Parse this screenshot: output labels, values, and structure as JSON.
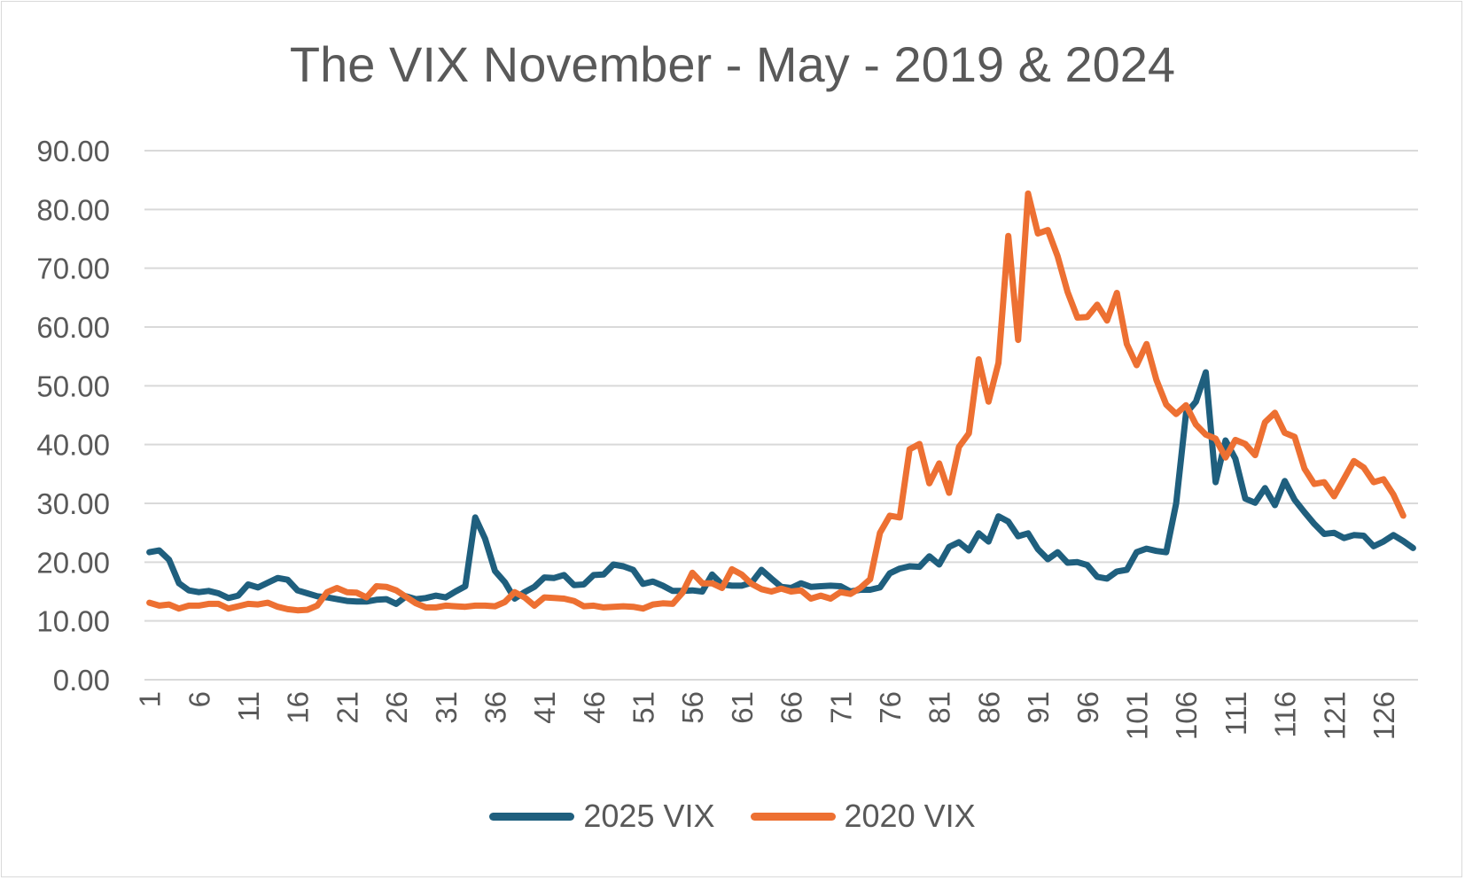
{
  "chart_data": {
    "type": "line",
    "title": "The VIX November - May - 2019 & 2024",
    "xlabel": "",
    "ylabel": "",
    "ylim": [
      0,
      90
    ],
    "y_ticks": [
      "0.00",
      "10.00",
      "20.00",
      "30.00",
      "40.00",
      "50.00",
      "60.00",
      "70.00",
      "80.00",
      "90.00"
    ],
    "x_ticks": [
      "1",
      "6",
      "11",
      "16",
      "21",
      "26",
      "31",
      "36",
      "41",
      "46",
      "51",
      "56",
      "61",
      "66",
      "71",
      "76",
      "81",
      "86",
      "91",
      "96",
      "101",
      "106",
      "111",
      "116",
      "121",
      "126"
    ],
    "grid": true,
    "legend_position": "bottom",
    "series": [
      {
        "name": "2025 VIX",
        "color": "#1f5f7e",
        "values": [
          21.7,
          22.0,
          20.4,
          16.4,
          15.2,
          14.9,
          15.1,
          14.7,
          13.9,
          14.3,
          16.2,
          15.7,
          16.5,
          17.3,
          17.0,
          15.2,
          14.7,
          14.2,
          14.0,
          13.7,
          13.4,
          13.3,
          13.3,
          13.6,
          13.7,
          12.9,
          14.2,
          13.7,
          13.9,
          14.3,
          14.0,
          15.0,
          15.9,
          27.6,
          24.0,
          18.5,
          16.6,
          13.8,
          14.9,
          15.8,
          17.4,
          17.3,
          17.8,
          16.1,
          16.2,
          17.8,
          17.9,
          19.6,
          19.3,
          18.7,
          16.3,
          16.7,
          16.0,
          15.1,
          15.1,
          15.2,
          15.0,
          17.9,
          16.2,
          16.0,
          16.0,
          16.5,
          18.7,
          17.2,
          15.8,
          15.6,
          16.4,
          15.8,
          15.9,
          16.0,
          15.9,
          15.0,
          15.3,
          15.3,
          15.7,
          18.1,
          18.9,
          19.3,
          19.2,
          21.0,
          19.6,
          22.6,
          23.4,
          22.0,
          24.9,
          23.5,
          27.8,
          26.9,
          24.4,
          24.9,
          22.2,
          20.5,
          21.7,
          19.9,
          20.0,
          19.5,
          17.5,
          17.2,
          18.4,
          18.7,
          21.7,
          22.3,
          21.9,
          21.7,
          30.0,
          45.3,
          47.3,
          52.3,
          33.6,
          40.7,
          37.6,
          30.8,
          30.1,
          32.6,
          29.7,
          33.8,
          30.6,
          28.5,
          26.5,
          24.8,
          25.0,
          24.1,
          24.6,
          24.5,
          22.7,
          23.5,
          24.6,
          23.6,
          22.4
        ]
      },
      {
        "name": "2020 VIX",
        "color": "#ed7032",
        "values": [
          13.1,
          12.6,
          12.8,
          12.1,
          12.6,
          12.6,
          12.9,
          12.9,
          12.1,
          12.5,
          12.9,
          12.8,
          13.1,
          12.4,
          12.0,
          11.8,
          11.9,
          12.6,
          14.9,
          15.6,
          14.9,
          14.8,
          14.0,
          15.9,
          15.8,
          15.2,
          14.1,
          13.0,
          12.3,
          12.3,
          12.6,
          12.5,
          12.4,
          12.6,
          12.6,
          12.5,
          13.2,
          14.9,
          14.0,
          12.6,
          14.0,
          13.9,
          13.8,
          13.4,
          12.5,
          12.6,
          12.3,
          12.4,
          12.5,
          12.4,
          12.1,
          12.8,
          13.0,
          12.9,
          14.8,
          18.2,
          16.4,
          16.4,
          15.6,
          18.8,
          17.9,
          16.3,
          15.4,
          15.0,
          15.5,
          15.0,
          15.2,
          13.8,
          14.3,
          13.8,
          14.9,
          14.6,
          15.6,
          17.1,
          25.0,
          27.9,
          27.6,
          39.2,
          40.1,
          33.4,
          36.8,
          31.8,
          39.6,
          41.9,
          54.5,
          47.3,
          53.9,
          75.5,
          57.8,
          82.7,
          75.9,
          76.5,
          72.0,
          66.0,
          61.6,
          61.7,
          63.8,
          61.1,
          65.8,
          57.1,
          53.5,
          57.1,
          51.0,
          46.8,
          45.2,
          46.7,
          43.4,
          41.7,
          41.0,
          37.8,
          40.8,
          40.1,
          38.2,
          43.8,
          45.4,
          42.0,
          41.3,
          35.9,
          33.3,
          33.6,
          31.2,
          34.2,
          37.2,
          36.1,
          33.6,
          34.1,
          31.5,
          27.9
        ]
      }
    ]
  }
}
